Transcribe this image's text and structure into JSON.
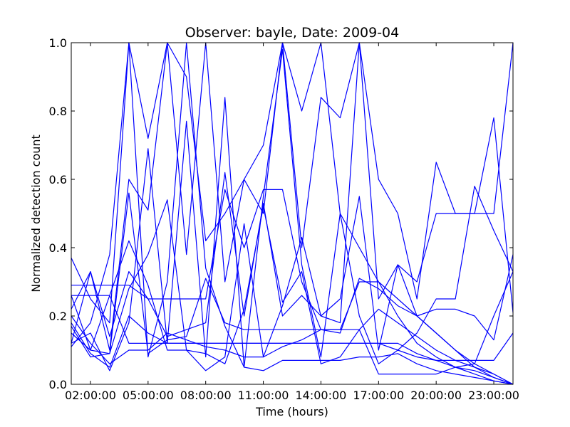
{
  "chart_data": {
    "type": "line",
    "title": "Observer: bayle, Date: 2009-04",
    "xlabel": "Time (hours)",
    "ylabel": "Normalized detection count",
    "xlim": [
      1,
      24
    ],
    "ylim": [
      0,
      1
    ],
    "x_ticks": [
      2,
      5,
      8,
      11,
      14,
      17,
      20,
      23
    ],
    "x_tick_labels": [
      "02:00:00",
      "05:00:00",
      "08:00:00",
      "11:00:00",
      "14:00:00",
      "17:00:00",
      "20:00:00",
      "23:00:00"
    ],
    "y_ticks": [
      0.0,
      0.2,
      0.4,
      0.6,
      0.8,
      1.0
    ],
    "y_tick_labels": [
      "0.0",
      "0.2",
      "0.4",
      "0.6",
      "0.8",
      "1.0"
    ],
    "grid": false,
    "legend": "none",
    "line_color": "#0000ff",
    "series": [
      {
        "x": [
          1,
          2,
          3,
          4,
          5,
          6,
          7,
          8,
          9,
          10,
          11,
          12,
          13,
          14,
          15,
          16,
          17,
          18,
          19,
          20,
          21,
          22,
          23,
          24
        ],
        "y": [
          0.37,
          0.25,
          0.18,
          1.0,
          0.72,
          1.0,
          0.9,
          0.42,
          0.5,
          0.6,
          0.7,
          1.0,
          0.8,
          1.0,
          0.5,
          0.4,
          0.3,
          0.25,
          0.2,
          0.15,
          0.1,
          0.05,
          0.02,
          0.0
        ]
      },
      {
        "x": [
          1,
          2,
          3,
          4,
          5,
          6,
          7,
          8,
          9,
          10,
          11,
          12,
          13,
          14,
          15,
          16,
          17,
          18,
          19,
          20,
          21,
          22,
          23,
          24
        ],
        "y": [
          0.29,
          0.29,
          0.29,
          0.29,
          0.25,
          0.25,
          0.25,
          0.25,
          0.57,
          0.4,
          0.57,
          0.57,
          0.3,
          0.16,
          0.16,
          0.3,
          0.3,
          0.2,
          0.12,
          0.08,
          0.05,
          0.03,
          0.01,
          0.0
        ]
      },
      {
        "x": [
          1,
          2,
          3,
          4,
          5,
          6,
          7,
          8,
          9,
          10,
          11,
          12,
          13,
          14,
          15,
          16,
          17,
          18,
          19,
          20,
          21,
          22,
          23,
          24
        ],
        "y": [
          0.12,
          0.33,
          0.1,
          0.6,
          0.51,
          1.0,
          0.38,
          1.0,
          0.3,
          0.6,
          0.5,
          1.0,
          0.4,
          0.84,
          0.78,
          1.0,
          0.6,
          0.5,
          0.25,
          0.65,
          0.5,
          0.5,
          0.5,
          1.0
        ]
      },
      {
        "x": [
          1,
          2,
          3,
          4,
          5,
          6,
          7,
          8,
          9,
          10,
          11,
          12,
          13,
          14,
          15,
          16,
          17,
          18,
          19,
          20,
          21,
          22,
          23,
          24
        ],
        "y": [
          0.2,
          0.12,
          0.06,
          0.1,
          0.1,
          0.15,
          0.13,
          0.11,
          0.1,
          0.08,
          0.08,
          0.11,
          0.13,
          0.16,
          0.15,
          0.31,
          0.28,
          0.23,
          0.2,
          0.15,
          0.1,
          0.06,
          0.03,
          0.0
        ]
      },
      {
        "x": [
          1,
          2,
          3,
          4,
          5,
          6,
          7,
          8,
          9,
          10,
          11,
          12,
          13,
          14,
          15,
          16,
          17,
          18,
          19,
          20,
          21,
          22,
          23,
          24
        ],
        "y": [
          0.18,
          0.09,
          0.05,
          0.2,
          0.15,
          0.12,
          0.12,
          0.12,
          0.12,
          0.12,
          0.12,
          0.12,
          0.12,
          0.12,
          0.12,
          0.12,
          0.12,
          0.1,
          0.08,
          0.07,
          0.07,
          0.07,
          0.07,
          0.15
        ]
      },
      {
        "x": [
          1,
          2,
          3,
          4,
          5,
          6,
          7,
          8,
          9,
          10,
          11,
          12,
          13,
          14,
          15,
          16,
          17,
          18,
          19,
          20,
          21,
          22,
          23,
          24
        ],
        "y": [
          0.17,
          0.08,
          0.09,
          0.56,
          0.09,
          0.13,
          0.14,
          0.31,
          0.18,
          0.16,
          0.16,
          0.16,
          0.16,
          0.16,
          0.16,
          0.16,
          0.22,
          0.18,
          0.14,
          0.1,
          0.07,
          0.05,
          0.03,
          0.0
        ]
      },
      {
        "x": [
          1,
          2,
          3,
          4,
          5,
          6,
          7,
          8,
          9,
          10,
          11,
          12,
          13,
          14,
          15,
          16,
          17,
          18,
          19,
          20,
          21,
          22,
          23,
          24
        ],
        "y": [
          0.22,
          0.33,
          0.14,
          0.33,
          0.25,
          0.14,
          0.16,
          0.18,
          0.62,
          0.2,
          0.53,
          0.2,
          0.26,
          0.2,
          0.25,
          0.55,
          0.1,
          0.35,
          0.2,
          0.22,
          0.22,
          0.2,
          0.13,
          0.38
        ]
      },
      {
        "x": [
          1,
          2,
          3,
          4,
          5,
          6,
          7,
          8,
          9,
          10,
          11,
          12,
          13,
          14,
          15,
          16,
          17,
          18,
          19,
          20,
          21,
          22,
          23,
          24
        ],
        "y": [
          0.12,
          0.15,
          0.04,
          0.18,
          0.69,
          0.12,
          0.77,
          0.08,
          0.84,
          0.05,
          0.55,
          0.98,
          0.35,
          0.08,
          0.5,
          0.2,
          0.06,
          0.1,
          0.15,
          0.25,
          0.25,
          0.58,
          0.45,
          0.33
        ]
      },
      {
        "x": [
          1,
          2,
          3,
          4,
          5,
          6,
          7,
          8,
          9,
          10,
          11,
          12,
          13,
          14,
          15,
          16,
          17,
          18,
          19,
          20,
          21,
          22,
          23,
          24
        ],
        "y": [
          0.15,
          0.1,
          0.26,
          0.42,
          0.29,
          0.1,
          0.1,
          0.09,
          0.06,
          0.22,
          0.52,
          0.24,
          0.33,
          0.06,
          0.08,
          0.16,
          0.03,
          0.03,
          0.03,
          0.03,
          0.05,
          0.06,
          0.2,
          0.33
        ]
      },
      {
        "x": [
          1,
          2,
          3,
          4,
          5,
          6,
          7,
          8,
          9,
          10,
          11,
          12,
          13,
          14,
          15,
          16,
          17,
          18,
          19,
          20,
          21,
          22,
          23,
          24
        ],
        "y": [
          0.26,
          0.26,
          0.26,
          0.12,
          0.12,
          0.12,
          0.12,
          0.12,
          0.12,
          0.12,
          0.12,
          0.12,
          0.12,
          0.12,
          0.12,
          0.12,
          0.12,
          0.12,
          0.09,
          0.07,
          0.05,
          0.04,
          0.02,
          0.0
        ]
      },
      {
        "x": [
          1,
          2,
          3,
          4,
          5,
          6,
          7,
          8,
          9,
          10,
          11,
          12,
          13,
          14,
          15,
          16,
          17,
          18,
          19,
          20,
          21,
          22,
          23,
          24
        ],
        "y": [
          0.26,
          0.1,
          0.09,
          0.28,
          0.38,
          0.54,
          0.1,
          0.04,
          0.08,
          0.47,
          0.08,
          0.23,
          0.43,
          0.2,
          0.18,
          1.0,
          0.25,
          0.35,
          0.3,
          0.5,
          0.5,
          0.5,
          0.78,
          0.21
        ]
      },
      {
        "x": [
          1,
          2,
          3,
          4,
          5,
          6,
          7,
          8,
          9,
          10,
          11,
          12,
          13,
          14,
          15,
          16,
          17,
          18,
          19,
          20,
          21,
          22,
          23,
          24
        ],
        "y": [
          0.11,
          0.18,
          0.38,
          1.0,
          0.08,
          0.3,
          1.0,
          0.34,
          0.17,
          0.05,
          0.04,
          0.07,
          0.07,
          0.07,
          0.07,
          0.08,
          0.08,
          0.09,
          0.06,
          0.04,
          0.03,
          0.02,
          0.01,
          0.0
        ]
      }
    ]
  }
}
